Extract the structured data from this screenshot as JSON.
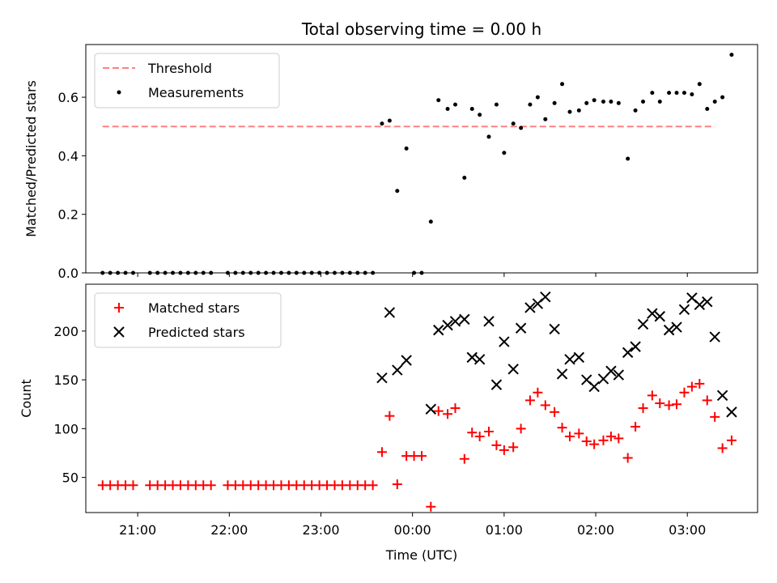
{
  "title": "Total observing time = 0.00 h",
  "colors": {
    "threshold": "#ff8080",
    "measurements": "#000000",
    "matched": "#ff0000",
    "predicted": "#000000"
  },
  "chart_data": [
    {
      "type": "scatter",
      "ylabel": "Matched/Predicted stars",
      "xlabel": "",
      "x_axis": "time (UTC)",
      "xlim": [
        "20:26",
        "03:46"
      ],
      "ylim": [
        0.0,
        0.78
      ],
      "yticks": [
        0.0,
        0.2,
        0.4,
        0.6
      ],
      "ytick_labels": [
        "0.0",
        "0.2",
        "0.4",
        "0.6"
      ],
      "legend": {
        "position": "top-left",
        "entries": [
          "Threshold",
          "Measurements"
        ]
      },
      "threshold": {
        "name": "Threshold",
        "value": 0.5,
        "x": [
          "20:37",
          "03:18"
        ]
      },
      "series": [
        {
          "name": "Measurements",
          "marker": "dot",
          "points": [
            [
              "20:37",
              0.0
            ],
            [
              "20:42",
              0.0
            ],
            [
              "20:47",
              0.0
            ],
            [
              "20:52",
              0.0
            ],
            [
              "20:57",
              0.0
            ],
            [
              "21:08",
              0.0
            ],
            [
              "21:13",
              0.0
            ],
            [
              "21:18",
              0.0
            ],
            [
              "21:23",
              0.0
            ],
            [
              "21:28",
              0.0
            ],
            [
              "21:33",
              0.0
            ],
            [
              "21:38",
              0.0
            ],
            [
              "21:43",
              0.0
            ],
            [
              "21:48",
              0.0
            ],
            [
              "21:59",
              0.0
            ],
            [
              "22:04",
              0.0
            ],
            [
              "22:09",
              0.0
            ],
            [
              "22:14",
              0.0
            ],
            [
              "22:19",
              0.0
            ],
            [
              "22:24",
              0.0
            ],
            [
              "22:29",
              0.0
            ],
            [
              "22:34",
              0.0
            ],
            [
              "22:39",
              0.0
            ],
            [
              "22:44",
              0.0
            ],
            [
              "22:49",
              0.0
            ],
            [
              "22:54",
              0.0
            ],
            [
              "22:59",
              0.0
            ],
            [
              "23:04",
              0.0
            ],
            [
              "23:09",
              0.0
            ],
            [
              "23:14",
              0.0
            ],
            [
              "23:19",
              0.0
            ],
            [
              "23:24",
              0.0
            ],
            [
              "23:29",
              0.0
            ],
            [
              "23:34",
              0.0
            ],
            [
              "23:40",
              0.51
            ],
            [
              "23:45",
              0.52
            ],
            [
              "23:50",
              0.28
            ],
            [
              "23:56",
              0.425
            ],
            [
              "00:01",
              0.0
            ],
            [
              "00:06",
              0.0
            ],
            [
              "00:12",
              0.175
            ],
            [
              "00:17",
              0.59
            ],
            [
              "00:23",
              0.56
            ],
            [
              "00:28",
              0.575
            ],
            [
              "00:34",
              0.325
            ],
            [
              "00:39",
              0.56
            ],
            [
              "00:44",
              0.54
            ],
            [
              "00:50",
              0.465
            ],
            [
              "00:55",
              0.575
            ],
            [
              "01:00",
              0.41
            ],
            [
              "01:06",
              0.51
            ],
            [
              "01:11",
              0.495
            ],
            [
              "01:17",
              0.575
            ],
            [
              "01:22",
              0.6
            ],
            [
              "01:27",
              0.525
            ],
            [
              "01:33",
              0.58
            ],
            [
              "01:38",
              0.645
            ],
            [
              "01:43",
              0.55
            ],
            [
              "01:49",
              0.555
            ],
            [
              "01:54",
              0.58
            ],
            [
              "01:59",
              0.59
            ],
            [
              "02:05",
              0.585
            ],
            [
              "02:10",
              0.585
            ],
            [
              "02:15",
              0.58
            ],
            [
              "02:21",
              0.39
            ],
            [
              "02:26",
              0.555
            ],
            [
              "02:31",
              0.585
            ],
            [
              "02:37",
              0.615
            ],
            [
              "02:42",
              0.585
            ],
            [
              "02:48",
              0.615
            ],
            [
              "02:53",
              0.615
            ],
            [
              "02:58",
              0.615
            ],
            [
              "03:03",
              0.61
            ],
            [
              "03:08",
              0.645
            ],
            [
              "03:13",
              0.56
            ],
            [
              "03:18",
              0.585
            ],
            [
              "03:23",
              0.6
            ],
            [
              "03:29",
              0.745
            ]
          ]
        }
      ]
    },
    {
      "type": "scatter",
      "ylabel": "Count",
      "xlabel": "Time (UTC)",
      "x_axis": "time (UTC)",
      "xlim": [
        "20:26",
        "03:46"
      ],
      "ylim": [
        14,
        248
      ],
      "yticks": [
        50,
        100,
        150,
        200
      ],
      "ytick_labels": [
        "50",
        "100",
        "150",
        "200"
      ],
      "xticks": [
        "21:00",
        "22:00",
        "23:00",
        "00:00",
        "01:00",
        "02:00",
        "03:00"
      ],
      "xtick_labels": [
        "21:00",
        "22:00",
        "23:00",
        "00:00",
        "01:00",
        "02:00",
        "03:00"
      ],
      "legend": {
        "position": "top-left",
        "entries": [
          "Matched stars",
          "Predicted stars"
        ]
      },
      "series": [
        {
          "name": "Matched stars",
          "marker": "plus",
          "points": [
            [
              "20:37",
              42
            ],
            [
              "20:42",
              42
            ],
            [
              "20:47",
              42
            ],
            [
              "20:52",
              42
            ],
            [
              "20:57",
              42
            ],
            [
              "21:08",
              42
            ],
            [
              "21:13",
              42
            ],
            [
              "21:18",
              42
            ],
            [
              "21:23",
              42
            ],
            [
              "21:28",
              42
            ],
            [
              "21:33",
              42
            ],
            [
              "21:38",
              42
            ],
            [
              "21:43",
              42
            ],
            [
              "21:48",
              42
            ],
            [
              "21:59",
              42
            ],
            [
              "22:04",
              42
            ],
            [
              "22:09",
              42
            ],
            [
              "22:14",
              42
            ],
            [
              "22:19",
              42
            ],
            [
              "22:24",
              42
            ],
            [
              "22:29",
              42
            ],
            [
              "22:34",
              42
            ],
            [
              "22:39",
              42
            ],
            [
              "22:44",
              42
            ],
            [
              "22:49",
              42
            ],
            [
              "22:54",
              42
            ],
            [
              "22:59",
              42
            ],
            [
              "23:04",
              42
            ],
            [
              "23:09",
              42
            ],
            [
              "23:14",
              42
            ],
            [
              "23:19",
              42
            ],
            [
              "23:24",
              42
            ],
            [
              "23:29",
              42
            ],
            [
              "23:34",
              42
            ],
            [
              "23:40",
              76
            ],
            [
              "23:45",
              113
            ],
            [
              "23:50",
              43
            ],
            [
              "23:56",
              72
            ],
            [
              "00:01",
              72
            ],
            [
              "00:06",
              72
            ],
            [
              "00:12",
              20
            ],
            [
              "00:17",
              118
            ],
            [
              "00:23",
              115
            ],
            [
              "00:28",
              121
            ],
            [
              "00:34",
              69
            ],
            [
              "00:39",
              96
            ],
            [
              "00:44",
              92
            ],
            [
              "00:50",
              97
            ],
            [
              "00:55",
              83
            ],
            [
              "01:00",
              78
            ],
            [
              "01:06",
              81
            ],
            [
              "01:11",
              100
            ],
            [
              "01:17",
              129
            ],
            [
              "01:22",
              137
            ],
            [
              "01:27",
              124
            ],
            [
              "01:33",
              117
            ],
            [
              "01:38",
              101
            ],
            [
              "01:43",
              92
            ],
            [
              "01:49",
              95
            ],
            [
              "01:54",
              87
            ],
            [
              "01:59",
              84
            ],
            [
              "02:05",
              88
            ],
            [
              "02:10",
              92
            ],
            [
              "02:15",
              90
            ],
            [
              "02:21",
              70
            ],
            [
              "02:26",
              102
            ],
            [
              "02:31",
              121
            ],
            [
              "02:37",
              134
            ],
            [
              "02:42",
              126
            ],
            [
              "02:48",
              124
            ],
            [
              "02:53",
              125
            ],
            [
              "02:58",
              137
            ],
            [
              "03:03",
              143
            ],
            [
              "03:08",
              146
            ],
            [
              "03:13",
              129
            ],
            [
              "03:18",
              112
            ],
            [
              "03:23",
              80
            ],
            [
              "03:29",
              88
            ]
          ]
        },
        {
          "name": "Predicted stars",
          "marker": "x",
          "points": [
            [
              "23:40",
              152
            ],
            [
              "23:45",
              219
            ],
            [
              "23:50",
              160
            ],
            [
              "23:56",
              170
            ],
            [
              "00:12",
              120
            ],
            [
              "00:17",
              201
            ],
            [
              "00:23",
              206
            ],
            [
              "00:28",
              210
            ],
            [
              "00:34",
              212
            ],
            [
              "00:39",
              173
            ],
            [
              "00:44",
              171
            ],
            [
              "00:50",
              210
            ],
            [
              "00:55",
              145
            ],
            [
              "01:00",
              189
            ],
            [
              "01:06",
              161
            ],
            [
              "01:11",
              203
            ],
            [
              "01:17",
              224
            ],
            [
              "01:22",
              228
            ],
            [
              "01:27",
              235
            ],
            [
              "01:33",
              202
            ],
            [
              "01:38",
              156
            ],
            [
              "01:43",
              171
            ],
            [
              "01:49",
              173
            ],
            [
              "01:54",
              150
            ],
            [
              "01:59",
              143
            ],
            [
              "02:05",
              151
            ],
            [
              "02:10",
              159
            ],
            [
              "02:15",
              155
            ],
            [
              "02:21",
              178
            ],
            [
              "02:26",
              184
            ],
            [
              "02:31",
              207
            ],
            [
              "02:37",
              218
            ],
            [
              "02:42",
              215
            ],
            [
              "02:48",
              201
            ],
            [
              "02:53",
              204
            ],
            [
              "02:58",
              222
            ],
            [
              "03:03",
              234
            ],
            [
              "03:08",
              227
            ],
            [
              "03:13",
              230
            ],
            [
              "03:18",
              194
            ],
            [
              "03:23",
              134
            ],
            [
              "03:29",
              117
            ]
          ]
        }
      ]
    }
  ]
}
